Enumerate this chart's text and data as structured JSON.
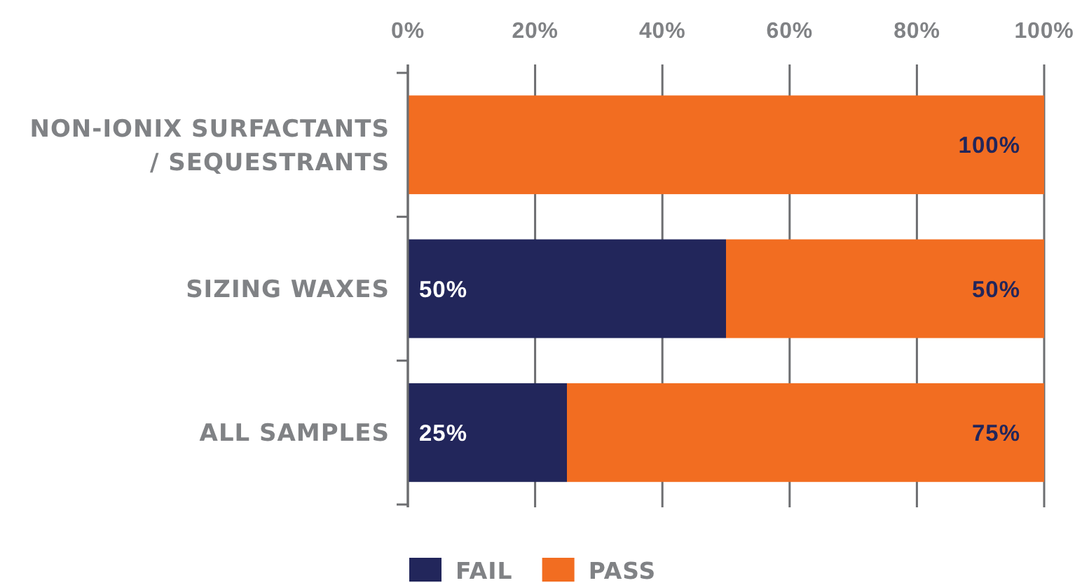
{
  "chart_data": {
    "type": "bar",
    "orientation": "horizontal",
    "stacked": true,
    "categories": [
      "NON-IONIX SURFACTANTS / SEQUESTRANTS",
      "SIZING WAXES",
      "ALL SAMPLES"
    ],
    "series": [
      {
        "name": "FAIL",
        "color": "#22265b",
        "values": [
          0,
          50,
          25
        ],
        "value_labels": [
          null,
          "50%",
          "25%"
        ]
      },
      {
        "name": "PASS",
        "color": "#f26d21",
        "values": [
          100,
          50,
          75
        ],
        "value_labels": [
          "100%",
          "50%",
          "75%"
        ]
      }
    ],
    "xlim": [
      0,
      100
    ],
    "xticks": [
      {
        "value": 0,
        "label": "0%"
      },
      {
        "value": 20,
        "label": "20%"
      },
      {
        "value": 40,
        "label": "40%"
      },
      {
        "value": 60,
        "label": "60%"
      },
      {
        "value": 80,
        "label": "80%"
      },
      {
        "value": 100,
        "label": "100%"
      }
    ],
    "grid": "x",
    "legend": "bottom"
  }
}
